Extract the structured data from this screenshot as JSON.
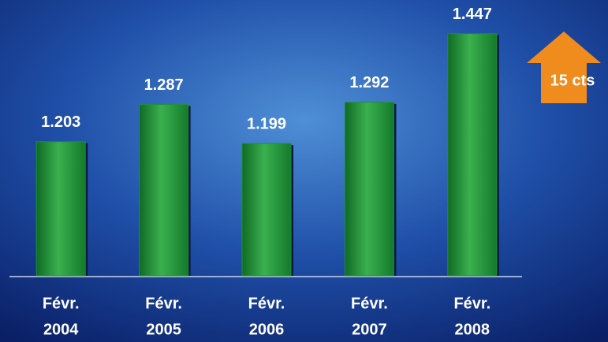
{
  "chart_data": {
    "type": "bar",
    "categories": [
      [
        "Févr.",
        "2004"
      ],
      [
        "Févr.",
        "2005"
      ],
      [
        "Févr.",
        "2006"
      ],
      [
        "Févr.",
        "2007"
      ],
      [
        "Févr.",
        "2008"
      ]
    ],
    "values": [
      1.203,
      1.287,
      1.199,
      1.292,
      1.447
    ],
    "color": "#1f8f3a",
    "ylim": [
      0.9,
      1.5
    ],
    "annotation": "15 cts",
    "annotation_color": "#f08c1e"
  }
}
